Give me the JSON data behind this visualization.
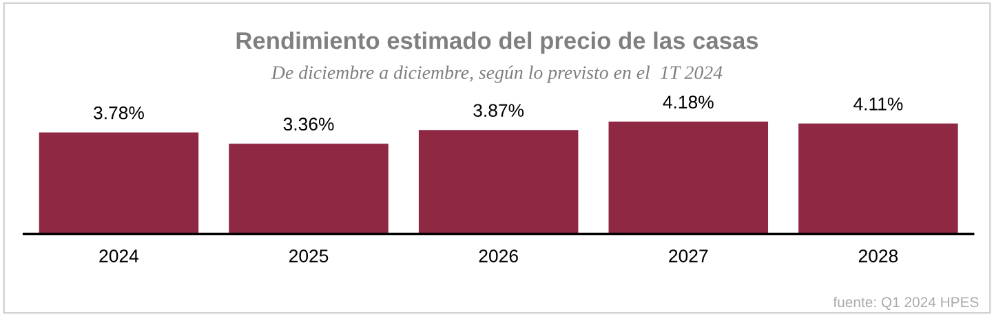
{
  "chart_data": {
    "type": "bar",
    "title": "Rendimiento estimado del precio de las casas",
    "subtitle": "De diciembre a diciembre, según lo previsto en el  1T 2024",
    "categories": [
      "2024",
      "2025",
      "2026",
      "2027",
      "2028"
    ],
    "values": [
      3.78,
      3.36,
      3.87,
      4.18,
      4.11
    ],
    "value_labels": [
      "3.78%",
      "3.36%",
      "3.87%",
      "4.18%",
      "4.11%"
    ],
    "color": "#8e2843",
    "grid": false,
    "legend": false,
    "annotations": [
      "fuente: Q1 2024 HPES"
    ]
  }
}
